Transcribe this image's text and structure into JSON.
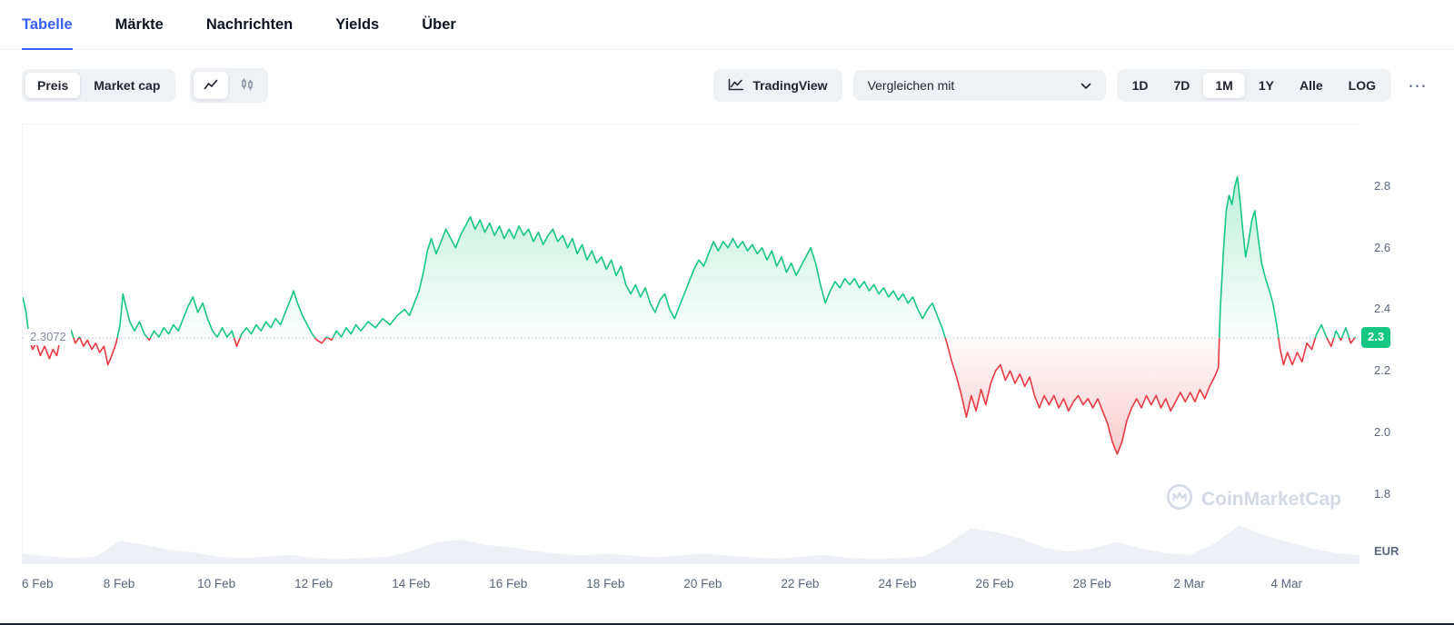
{
  "tabs": [
    {
      "label": "Tabelle",
      "active": true
    },
    {
      "label": "Märkte",
      "active": false
    },
    {
      "label": "Nachrichten",
      "active": false
    },
    {
      "label": "Yields",
      "active": false
    },
    {
      "label": "Über",
      "active": false
    }
  ],
  "toolbar": {
    "metric_options": [
      "Preis",
      "Market cap"
    ],
    "metric_selected": "Preis",
    "chart_type_selected": "line",
    "tradingview_label": "TradingView",
    "compare_label": "Vergleichen mit",
    "ranges": [
      "1D",
      "7D",
      "1M",
      "1Y",
      "Alle",
      "LOG"
    ],
    "range_selected": "1M",
    "more_label": "⋯"
  },
  "chart_data": {
    "type": "area",
    "currency": "EUR",
    "baseline": {
      "value": 2.3072,
      "label": "2.3072"
    },
    "last_price_badge": "2.3",
    "watermark": "CoinMarketCap",
    "y_ticks": [
      2.8,
      2.6,
      2.4,
      2.2,
      2.0,
      1.8
    ],
    "y_range": [
      1.57,
      3.0
    ],
    "x_range_days": [
      0,
      27.5
    ],
    "x_ticks": {
      "days": [
        0,
        2,
        4,
        6,
        8,
        10,
        12,
        14,
        16,
        18,
        20,
        22,
        24,
        26
      ],
      "labels": [
        "6 Feb",
        "8 Feb",
        "10 Feb",
        "12 Feb",
        "14 Feb",
        "16 Feb",
        "18 Feb",
        "20 Feb",
        "22 Feb",
        "24 Feb",
        "26 Feb",
        "28 Feb",
        "2 Mar",
        "4 Mar"
      ]
    },
    "colors": {
      "up": "#16c784",
      "down": "#ea3943",
      "baseline": "#a3adc2",
      "volume": "#edf0f4",
      "badge_bg": "#16c784",
      "accent": "#3861fb"
    },
    "grid": false,
    "series": {
      "name": "Preis",
      "unit": "EUR",
      "points": [
        [
          0.0,
          2.44
        ],
        [
          0.07,
          2.39
        ],
        [
          0.13,
          2.31
        ],
        [
          0.2,
          2.27
        ],
        [
          0.28,
          2.29
        ],
        [
          0.36,
          2.25
        ],
        [
          0.45,
          2.28
        ],
        [
          0.55,
          2.24
        ],
        [
          0.62,
          2.27
        ],
        [
          0.7,
          2.25
        ],
        [
          0.78,
          2.31
        ],
        [
          0.85,
          2.33
        ],
        [
          0.92,
          2.3
        ],
        [
          1.0,
          2.33
        ],
        [
          1.08,
          2.29
        ],
        [
          1.17,
          2.31
        ],
        [
          1.25,
          2.28
        ],
        [
          1.33,
          2.3
        ],
        [
          1.42,
          2.27
        ],
        [
          1.5,
          2.29
        ],
        [
          1.58,
          2.26
        ],
        [
          1.67,
          2.28
        ],
        [
          1.75,
          2.22
        ],
        [
          1.83,
          2.25
        ],
        [
          1.92,
          2.29
        ],
        [
          2.0,
          2.35
        ],
        [
          2.06,
          2.45
        ],
        [
          2.12,
          2.41
        ],
        [
          2.2,
          2.36
        ],
        [
          2.3,
          2.33
        ],
        [
          2.4,
          2.36
        ],
        [
          2.5,
          2.32
        ],
        [
          2.6,
          2.3
        ],
        [
          2.7,
          2.33
        ],
        [
          2.8,
          2.31
        ],
        [
          2.9,
          2.34
        ],
        [
          3.0,
          2.32
        ],
        [
          3.1,
          2.35
        ],
        [
          3.2,
          2.33
        ],
        [
          3.3,
          2.37
        ],
        [
          3.4,
          2.41
        ],
        [
          3.5,
          2.44
        ],
        [
          3.6,
          2.39
        ],
        [
          3.7,
          2.42
        ],
        [
          3.8,
          2.37
        ],
        [
          3.9,
          2.33
        ],
        [
          4.0,
          2.31
        ],
        [
          4.1,
          2.34
        ],
        [
          4.2,
          2.31
        ],
        [
          4.3,
          2.33
        ],
        [
          4.4,
          2.28
        ],
        [
          4.5,
          2.32
        ],
        [
          4.6,
          2.34
        ],
        [
          4.7,
          2.32
        ],
        [
          4.8,
          2.35
        ],
        [
          4.9,
          2.33
        ],
        [
          5.0,
          2.36
        ],
        [
          5.1,
          2.34
        ],
        [
          5.2,
          2.37
        ],
        [
          5.3,
          2.35
        ],
        [
          5.4,
          2.39
        ],
        [
          5.5,
          2.43
        ],
        [
          5.57,
          2.46
        ],
        [
          5.65,
          2.42
        ],
        [
          5.75,
          2.38
        ],
        [
          5.85,
          2.35
        ],
        [
          5.95,
          2.32
        ],
        [
          6.05,
          2.3
        ],
        [
          6.15,
          2.29
        ],
        [
          6.25,
          2.31
        ],
        [
          6.35,
          2.3
        ],
        [
          6.45,
          2.33
        ],
        [
          6.55,
          2.31
        ],
        [
          6.65,
          2.34
        ],
        [
          6.75,
          2.32
        ],
        [
          6.85,
          2.35
        ],
        [
          6.95,
          2.33
        ],
        [
          7.1,
          2.36
        ],
        [
          7.25,
          2.34
        ],
        [
          7.4,
          2.37
        ],
        [
          7.55,
          2.35
        ],
        [
          7.7,
          2.38
        ],
        [
          7.85,
          2.4
        ],
        [
          7.95,
          2.38
        ],
        [
          8.05,
          2.42
        ],
        [
          8.15,
          2.46
        ],
        [
          8.25,
          2.53
        ],
        [
          8.32,
          2.59
        ],
        [
          8.4,
          2.63
        ],
        [
          8.5,
          2.58
        ],
        [
          8.6,
          2.62
        ],
        [
          8.7,
          2.66
        ],
        [
          8.8,
          2.63
        ],
        [
          8.9,
          2.6
        ],
        [
          9.0,
          2.64
        ],
        [
          9.1,
          2.67
        ],
        [
          9.2,
          2.7
        ],
        [
          9.3,
          2.66
        ],
        [
          9.4,
          2.69
        ],
        [
          9.5,
          2.65
        ],
        [
          9.6,
          2.68
        ],
        [
          9.7,
          2.64
        ],
        [
          9.8,
          2.67
        ],
        [
          9.9,
          2.63
        ],
        [
          10.0,
          2.66
        ],
        [
          10.1,
          2.63
        ],
        [
          10.2,
          2.67
        ],
        [
          10.3,
          2.64
        ],
        [
          10.4,
          2.66
        ],
        [
          10.5,
          2.62
        ],
        [
          10.6,
          2.65
        ],
        [
          10.7,
          2.61
        ],
        [
          10.8,
          2.64
        ],
        [
          10.9,
          2.66
        ],
        [
          11.0,
          2.62
        ],
        [
          11.1,
          2.64
        ],
        [
          11.2,
          2.6
        ],
        [
          11.3,
          2.63
        ],
        [
          11.4,
          2.58
        ],
        [
          11.5,
          2.61
        ],
        [
          11.6,
          2.56
        ],
        [
          11.7,
          2.59
        ],
        [
          11.8,
          2.55
        ],
        [
          11.9,
          2.57
        ],
        [
          12.0,
          2.53
        ],
        [
          12.1,
          2.56
        ],
        [
          12.2,
          2.51
        ],
        [
          12.3,
          2.54
        ],
        [
          12.4,
          2.48
        ],
        [
          12.5,
          2.45
        ],
        [
          12.6,
          2.48
        ],
        [
          12.7,
          2.44
        ],
        [
          12.8,
          2.47
        ],
        [
          12.9,
          2.42
        ],
        [
          13.0,
          2.39
        ],
        [
          13.1,
          2.43
        ],
        [
          13.2,
          2.45
        ],
        [
          13.3,
          2.4
        ],
        [
          13.4,
          2.37
        ],
        [
          13.5,
          2.41
        ],
        [
          13.6,
          2.45
        ],
        [
          13.7,
          2.49
        ],
        [
          13.8,
          2.53
        ],
        [
          13.9,
          2.56
        ],
        [
          14.0,
          2.54
        ],
        [
          14.1,
          2.58
        ],
        [
          14.2,
          2.62
        ],
        [
          14.3,
          2.59
        ],
        [
          14.4,
          2.62
        ],
        [
          14.5,
          2.6
        ],
        [
          14.6,
          2.63
        ],
        [
          14.7,
          2.6
        ],
        [
          14.8,
          2.62
        ],
        [
          14.9,
          2.59
        ],
        [
          15.0,
          2.61
        ],
        [
          15.1,
          2.58
        ],
        [
          15.2,
          2.6
        ],
        [
          15.3,
          2.56
        ],
        [
          15.4,
          2.59
        ],
        [
          15.5,
          2.54
        ],
        [
          15.6,
          2.57
        ],
        [
          15.7,
          2.52
        ],
        [
          15.8,
          2.55
        ],
        [
          15.9,
          2.51
        ],
        [
          16.0,
          2.54
        ],
        [
          16.1,
          2.57
        ],
        [
          16.2,
          2.6
        ],
        [
          16.3,
          2.55
        ],
        [
          16.4,
          2.48
        ],
        [
          16.5,
          2.42
        ],
        [
          16.6,
          2.46
        ],
        [
          16.7,
          2.49
        ],
        [
          16.8,
          2.47
        ],
        [
          16.9,
          2.5
        ],
        [
          17.0,
          2.48
        ],
        [
          17.1,
          2.5
        ],
        [
          17.2,
          2.47
        ],
        [
          17.3,
          2.49
        ],
        [
          17.4,
          2.46
        ],
        [
          17.5,
          2.48
        ],
        [
          17.6,
          2.45
        ],
        [
          17.7,
          2.47
        ],
        [
          17.8,
          2.44
        ],
        [
          17.9,
          2.46
        ],
        [
          18.0,
          2.43
        ],
        [
          18.1,
          2.45
        ],
        [
          18.2,
          2.42
        ],
        [
          18.3,
          2.44
        ],
        [
          18.4,
          2.4
        ],
        [
          18.5,
          2.37
        ],
        [
          18.6,
          2.4
        ],
        [
          18.7,
          2.42
        ],
        [
          18.8,
          2.38
        ],
        [
          18.9,
          2.34
        ],
        [
          19.0,
          2.29
        ],
        [
          19.1,
          2.23
        ],
        [
          19.2,
          2.18
        ],
        [
          19.3,
          2.12
        ],
        [
          19.4,
          2.05
        ],
        [
          19.5,
          2.12
        ],
        [
          19.6,
          2.07
        ],
        [
          19.7,
          2.14
        ],
        [
          19.8,
          2.09
        ],
        [
          19.9,
          2.16
        ],
        [
          20.0,
          2.2
        ],
        [
          20.1,
          2.22
        ],
        [
          20.2,
          2.17
        ],
        [
          20.3,
          2.2
        ],
        [
          20.4,
          2.16
        ],
        [
          20.5,
          2.19
        ],
        [
          20.6,
          2.15
        ],
        [
          20.7,
          2.18
        ],
        [
          20.8,
          2.12
        ],
        [
          20.9,
          2.08
        ],
        [
          21.0,
          2.12
        ],
        [
          21.1,
          2.09
        ],
        [
          21.2,
          2.12
        ],
        [
          21.3,
          2.08
        ],
        [
          21.4,
          2.11
        ],
        [
          21.5,
          2.07
        ],
        [
          21.6,
          2.1
        ],
        [
          21.7,
          2.12
        ],
        [
          21.8,
          2.09
        ],
        [
          21.9,
          2.11
        ],
        [
          22.0,
          2.08
        ],
        [
          22.1,
          2.11
        ],
        [
          22.2,
          2.07
        ],
        [
          22.3,
          2.03
        ],
        [
          22.4,
          1.97
        ],
        [
          22.5,
          1.93
        ],
        [
          22.6,
          1.97
        ],
        [
          22.7,
          2.04
        ],
        [
          22.8,
          2.08
        ],
        [
          22.9,
          2.11
        ],
        [
          23.0,
          2.08
        ],
        [
          23.1,
          2.12
        ],
        [
          23.2,
          2.09
        ],
        [
          23.3,
          2.12
        ],
        [
          23.4,
          2.08
        ],
        [
          23.5,
          2.11
        ],
        [
          23.6,
          2.07
        ],
        [
          23.7,
          2.1
        ],
        [
          23.8,
          2.13
        ],
        [
          23.9,
          2.1
        ],
        [
          24.0,
          2.13
        ],
        [
          24.1,
          2.1
        ],
        [
          24.2,
          2.14
        ],
        [
          24.3,
          2.11
        ],
        [
          24.4,
          2.15
        ],
        [
          24.5,
          2.18
        ],
        [
          24.58,
          2.21
        ],
        [
          24.62,
          2.4
        ],
        [
          24.68,
          2.58
        ],
        [
          24.74,
          2.72
        ],
        [
          24.8,
          2.77
        ],
        [
          24.86,
          2.74
        ],
        [
          24.92,
          2.8
        ],
        [
          24.97,
          2.83
        ],
        [
          25.02,
          2.76
        ],
        [
          25.08,
          2.66
        ],
        [
          25.14,
          2.57
        ],
        [
          25.2,
          2.62
        ],
        [
          25.27,
          2.69
        ],
        [
          25.33,
          2.72
        ],
        [
          25.4,
          2.63
        ],
        [
          25.47,
          2.55
        ],
        [
          25.55,
          2.5
        ],
        [
          25.63,
          2.46
        ],
        [
          25.7,
          2.42
        ],
        [
          25.78,
          2.35
        ],
        [
          25.85,
          2.27
        ],
        [
          25.92,
          2.22
        ],
        [
          26.0,
          2.26
        ],
        [
          26.1,
          2.22
        ],
        [
          26.2,
          2.26
        ],
        [
          26.3,
          2.23
        ],
        [
          26.4,
          2.29
        ],
        [
          26.5,
          2.27
        ],
        [
          26.6,
          2.32
        ],
        [
          26.7,
          2.35
        ],
        [
          26.8,
          2.31
        ],
        [
          26.9,
          2.28
        ],
        [
          27.0,
          2.33
        ],
        [
          27.1,
          2.3
        ],
        [
          27.2,
          2.34
        ],
        [
          27.3,
          2.29
        ],
        [
          27.4,
          2.31
        ]
      ]
    },
    "volume": {
      "points": [
        [
          0,
          0.18
        ],
        [
          0.5,
          0.14
        ],
        [
          1,
          0.11
        ],
        [
          1.5,
          0.13
        ],
        [
          2,
          0.38
        ],
        [
          2.5,
          0.32
        ],
        [
          3,
          0.24
        ],
        [
          3.5,
          0.2
        ],
        [
          4,
          0.13
        ],
        [
          4.5,
          0.11
        ],
        [
          5,
          0.13
        ],
        [
          5.5,
          0.16
        ],
        [
          6,
          0.11
        ],
        [
          6.5,
          0.09
        ],
        [
          7,
          0.11
        ],
        [
          7.5,
          0.13
        ],
        [
          8,
          0.22
        ],
        [
          8.5,
          0.36
        ],
        [
          9,
          0.4
        ],
        [
          9.5,
          0.32
        ],
        [
          10,
          0.28
        ],
        [
          10.5,
          0.22
        ],
        [
          11,
          0.18
        ],
        [
          11.5,
          0.15
        ],
        [
          12,
          0.18
        ],
        [
          12.5,
          0.15
        ],
        [
          13,
          0.12
        ],
        [
          13.5,
          0.15
        ],
        [
          14,
          0.18
        ],
        [
          14.5,
          0.15
        ],
        [
          15,
          0.12
        ],
        [
          15.5,
          0.1
        ],
        [
          16,
          0.13
        ],
        [
          16.5,
          0.16
        ],
        [
          17,
          0.11
        ],
        [
          17.5,
          0.09
        ],
        [
          18,
          0.11
        ],
        [
          18.5,
          0.13
        ],
        [
          19,
          0.32
        ],
        [
          19.5,
          0.58
        ],
        [
          20,
          0.52
        ],
        [
          20.5,
          0.42
        ],
        [
          21,
          0.27
        ],
        [
          21.5,
          0.21
        ],
        [
          22,
          0.26
        ],
        [
          22.5,
          0.36
        ],
        [
          23,
          0.26
        ],
        [
          23.5,
          0.19
        ],
        [
          24,
          0.16
        ],
        [
          24.5,
          0.34
        ],
        [
          25,
          0.62
        ],
        [
          25.5,
          0.48
        ],
        [
          26,
          0.36
        ],
        [
          26.5,
          0.26
        ],
        [
          27,
          0.19
        ],
        [
          27.5,
          0.15
        ]
      ]
    }
  }
}
